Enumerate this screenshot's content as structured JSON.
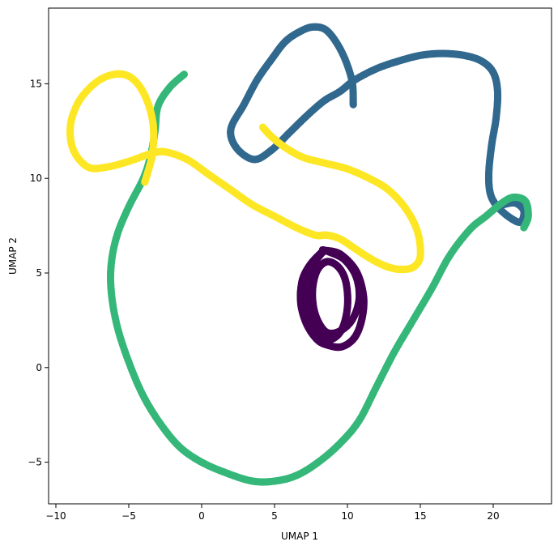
{
  "chart_data": {
    "type": "scatter",
    "xlabel": "UMAP 1",
    "ylabel": "UMAP 2",
    "xlim": [
      -10.5,
      24.0
    ],
    "ylim": [
      -7.2,
      19.0
    ],
    "xticks": [
      -10,
      -5,
      0,
      5,
      10,
      15,
      20
    ],
    "yticks": [
      -5,
      0,
      5,
      10,
      15
    ],
    "xtick_labels": [
      "−10",
      "−5",
      "0",
      "5",
      "10",
      "15",
      "20"
    ],
    "ytick_labels": [
      "−5",
      "0",
      "5",
      "10",
      "15"
    ],
    "grid": false,
    "legend": "none",
    "series": [
      {
        "color": "#440154",
        "closed": true,
        "points": [
          [
            8.4,
            6.2
          ],
          [
            9.5,
            6.0
          ],
          [
            10.6,
            5.1
          ],
          [
            11.1,
            3.8
          ],
          [
            11.0,
            2.6
          ],
          [
            10.5,
            1.6
          ],
          [
            9.6,
            1.1
          ],
          [
            8.6,
            1.2
          ],
          [
            7.9,
            1.5
          ],
          [
            7.2,
            2.3
          ],
          [
            6.8,
            3.4
          ],
          [
            6.9,
            4.6
          ],
          [
            7.5,
            5.5
          ],
          [
            8.4,
            6.2
          ],
          [
            7.8,
            5.6
          ],
          [
            7.2,
            4.6
          ],
          [
            7.3,
            3.2
          ],
          [
            7.9,
            2.0
          ],
          [
            8.8,
            1.5
          ],
          [
            9.6,
            2.0
          ],
          [
            10.0,
            3.2
          ],
          [
            9.9,
            4.5
          ],
          [
            9.4,
            5.3
          ],
          [
            8.6,
            5.6
          ],
          [
            7.9,
            5.1
          ],
          [
            7.6,
            4.0
          ],
          [
            7.8,
            2.8
          ],
          [
            8.5,
            1.9
          ],
          [
            9.4,
            1.9
          ],
          [
            10.3,
            2.5
          ],
          [
            10.8,
            3.6
          ],
          [
            10.6,
            4.8
          ],
          [
            9.8,
            5.7
          ],
          [
            8.8,
            6.1
          ],
          [
            8.4,
            6.2
          ]
        ]
      },
      {
        "color": "#31688e",
        "closed": false,
        "points": [
          [
            10.4,
            13.9
          ],
          [
            10.3,
            15.2
          ],
          [
            9.6,
            16.7
          ],
          [
            8.6,
            17.8
          ],
          [
            7.6,
            18.0
          ],
          [
            6.6,
            17.7
          ],
          [
            5.7,
            17.2
          ],
          [
            4.8,
            16.3
          ],
          [
            3.8,
            15.2
          ],
          [
            2.9,
            13.9
          ],
          [
            2.0,
            12.6
          ],
          [
            2.4,
            11.6
          ],
          [
            3.6,
            11.0
          ],
          [
            4.8,
            11.5
          ],
          [
            6.0,
            12.4
          ],
          [
            7.2,
            13.3
          ],
          [
            8.4,
            14.1
          ],
          [
            9.5,
            14.6
          ],
          [
            10.5,
            15.2
          ],
          [
            12.0,
            15.8
          ],
          [
            13.5,
            16.2
          ],
          [
            15.0,
            16.5
          ],
          [
            16.5,
            16.6
          ],
          [
            18.0,
            16.5
          ],
          [
            19.2,
            16.2
          ],
          [
            20.0,
            15.6
          ],
          [
            20.3,
            14.6
          ],
          [
            20.2,
            13.2
          ],
          [
            19.9,
            11.8
          ],
          [
            19.7,
            10.3
          ],
          [
            19.8,
            9.2
          ],
          [
            20.3,
            8.5
          ],
          [
            21.2,
            7.9
          ],
          [
            21.9,
            7.7
          ],
          [
            22.1,
            8.3
          ],
          [
            21.5,
            8.7
          ],
          [
            20.6,
            8.6
          ]
        ]
      },
      {
        "color": "#35b779",
        "closed": false,
        "points": [
          [
            -1.2,
            15.5
          ],
          [
            -2.2,
            14.8
          ],
          [
            -3.0,
            13.8
          ],
          [
            -3.2,
            12.5
          ],
          [
            -3.5,
            11.2
          ],
          [
            -4.0,
            10.0
          ],
          [
            -5.0,
            8.5
          ],
          [
            -5.8,
            7.0
          ],
          [
            -6.2,
            5.5
          ],
          [
            -6.2,
            4.0
          ],
          [
            -5.8,
            2.2
          ],
          [
            -5.0,
            0.3
          ],
          [
            -4.0,
            -1.5
          ],
          [
            -2.8,
            -3.0
          ],
          [
            -1.5,
            -4.2
          ],
          [
            0.0,
            -5.0
          ],
          [
            1.8,
            -5.6
          ],
          [
            3.5,
            -6.0
          ],
          [
            5.0,
            -6.0
          ],
          [
            6.5,
            -5.7
          ],
          [
            8.0,
            -5.0
          ],
          [
            9.5,
            -4.0
          ],
          [
            10.8,
            -2.8
          ],
          [
            12.0,
            -1.0
          ],
          [
            13.2,
            0.8
          ],
          [
            14.5,
            2.5
          ],
          [
            15.8,
            4.2
          ],
          [
            17.0,
            5.9
          ],
          [
            18.4,
            7.3
          ],
          [
            19.5,
            8.0
          ],
          [
            20.6,
            8.7
          ],
          [
            21.4,
            9.0
          ],
          [
            22.2,
            8.8
          ],
          [
            22.4,
            8.0
          ],
          [
            22.1,
            7.4
          ]
        ]
      },
      {
        "color": "#fde725",
        "closed": false,
        "points": [
          [
            -3.9,
            9.8
          ],
          [
            -3.4,
            11.2
          ],
          [
            -3.3,
            12.6
          ],
          [
            -3.6,
            13.8
          ],
          [
            -4.2,
            14.8
          ],
          [
            -5.0,
            15.4
          ],
          [
            -6.0,
            15.5
          ],
          [
            -7.2,
            15.1
          ],
          [
            -8.4,
            14.1
          ],
          [
            -9.0,
            12.8
          ],
          [
            -8.8,
            11.5
          ],
          [
            -7.8,
            10.6
          ],
          [
            -6.5,
            10.6
          ],
          [
            -5.0,
            10.9
          ],
          [
            -3.5,
            11.3
          ],
          [
            -2.5,
            11.4
          ],
          [
            -1.0,
            11.0
          ],
          [
            0.5,
            10.2
          ],
          [
            2.0,
            9.4
          ],
          [
            3.5,
            8.6
          ],
          [
            5.0,
            8.0
          ],
          [
            6.5,
            7.4
          ],
          [
            7.8,
            7.0
          ],
          [
            8.6,
            7.0
          ],
          [
            9.5,
            6.8
          ],
          [
            10.5,
            6.3
          ],
          [
            11.5,
            5.8
          ],
          [
            12.5,
            5.4
          ],
          [
            13.5,
            5.2
          ],
          [
            14.5,
            5.3
          ],
          [
            15.0,
            5.9
          ],
          [
            14.8,
            7.2
          ],
          [
            14.0,
            8.4
          ],
          [
            12.8,
            9.4
          ],
          [
            11.5,
            10.0
          ],
          [
            10.0,
            10.5
          ],
          [
            8.5,
            10.8
          ],
          [
            7.0,
            11.1
          ],
          [
            5.8,
            11.6
          ],
          [
            4.8,
            12.2
          ],
          [
            4.2,
            12.7
          ]
        ]
      }
    ]
  }
}
